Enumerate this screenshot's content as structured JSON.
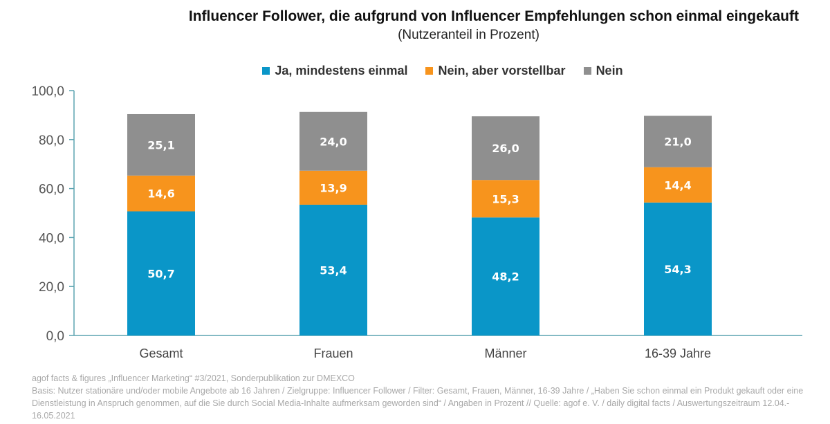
{
  "chart_data": {
    "type": "bar",
    "stacked": true,
    "title": "Influencer Follower, die aufgrund von Influencer Empfehlungen schon einmal eingekauft",
    "subtitle": "(Nutzeranteil in Prozent)",
    "categories": [
      "Gesamt",
      "Frauen",
      "Männer",
      "16-39 Jahre"
    ],
    "series": [
      {
        "name": "Ja, mindestens einmal",
        "values": [
          50.7,
          53.4,
          48.2,
          54.3
        ],
        "labels": [
          "50,7",
          "53,4",
          "48,2",
          "54,3"
        ],
        "color": "#0a96c8"
      },
      {
        "name": "Nein, aber vorstellbar",
        "values": [
          14.6,
          13.9,
          15.3,
          14.4
        ],
        "labels": [
          "14,6",
          "13,9",
          "15,3",
          "14,4"
        ],
        "color": "#f7941d"
      },
      {
        "name": "Nein",
        "values": [
          25.1,
          24.0,
          26.0,
          21.0
        ],
        "labels": [
          "25,1",
          "24,0",
          "26,0",
          "21,0"
        ],
        "color": "#8f8f8f"
      }
    ],
    "ylim": [
      0,
      100
    ],
    "yticks": [
      0,
      20,
      40,
      60,
      80,
      100
    ],
    "ytick_labels": [
      "0,0",
      "20,0",
      "40,0",
      "60,0",
      "80,0",
      "100,0"
    ],
    "grid": false,
    "legend_position": "top",
    "axis_color": "#5ba3b0"
  },
  "footer": [
    "agof facts & figures „Influencer Marketing“ #3/2021,  Sonderpublikation  zur DMEXCO",
    "Basis: Nutzer stationäre und/oder mobile Angebote  ab 16 Jahren / Zielgruppe: Influencer Follower / Filter:  Gesamt, Frauen, Männer, 16-39  Jahre / „Haben Sie schon einmal ein Produkt gekauft oder eine Dienstleistung in Anspruch genommen, auf die Sie durch Social Media-Inhalte aufmerksam geworden sind“ / Angaben in Prozent // Quelle:  agof e. V. / daily digital facts / Auswertungszeitraum 12.04.-  16.05.2021"
  ]
}
